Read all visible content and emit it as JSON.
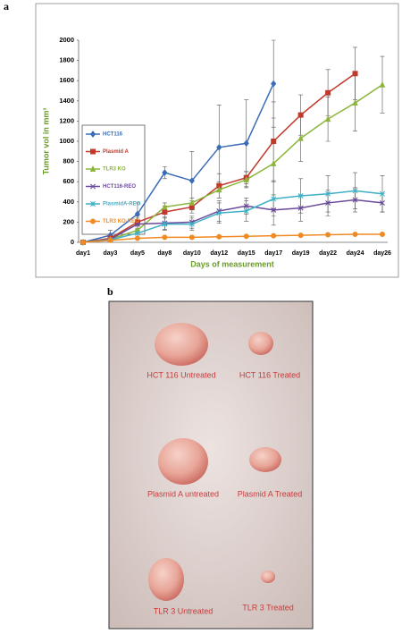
{
  "panel_a": {
    "label": "a"
  },
  "chart_data": {
    "type": "line",
    "y_label": "Tumor vol in mm³",
    "x_label": "Days of measurement",
    "categories": [
      "day1",
      "day3",
      "day5",
      "day8",
      "day10",
      "day12",
      "day15",
      "day17",
      "day19",
      "day22",
      "day24",
      "day26"
    ],
    "ylim": [
      0,
      2000
    ],
    "yticks": [
      0,
      200,
      400,
      600,
      800,
      1000,
      1200,
      1400,
      1600,
      1800,
      2000
    ],
    "grid": false,
    "series": [
      {
        "name": "HCT116",
        "color": "#3a6db5",
        "marker": "diamond",
        "values": [
          0,
          70,
          280,
          690,
          610,
          940,
          980,
          1570,
          null,
          null,
          null,
          null
        ],
        "errors": [
          0,
          50,
          110,
          60,
          290,
          420,
          430,
          430,
          null,
          null,
          null,
          null
        ]
      },
      {
        "name": "Plasmid A",
        "color": "#c0392b",
        "marker": "square",
        "values": [
          0,
          40,
          200,
          300,
          350,
          560,
          640,
          1000,
          1260,
          1480,
          1670,
          null
        ],
        "errors": [
          0,
          20,
          60,
          60,
          60,
          120,
          60,
          390,
          200,
          230,
          260,
          null
        ]
      },
      {
        "name": "TLR3 KO",
        "color": "#8db53c",
        "marker": "triangle",
        "values": [
          0,
          30,
          120,
          350,
          390,
          520,
          620,
          780,
          1030,
          1220,
          1380,
          1560
        ],
        "errors": [
          0,
          20,
          40,
          40,
          50,
          80,
          80,
          450,
          230,
          220,
          280,
          280
        ]
      },
      {
        "name": "HCT116-REO",
        "color": "#6b4a9c",
        "marker": "cross",
        "values": [
          0,
          30,
          180,
          190,
          200,
          310,
          360,
          320,
          340,
          390,
          420,
          390
        ],
        "errors": [
          0,
          15,
          60,
          60,
          60,
          100,
          80,
          150,
          130,
          130,
          120,
          90
        ]
      },
      {
        "name": "PlasmidA-REO",
        "color": "#3fb0c6",
        "marker": "star",
        "values": [
          0,
          25,
          90,
          180,
          180,
          290,
          310,
          430,
          460,
          480,
          510,
          480
        ],
        "errors": [
          0,
          15,
          40,
          60,
          60,
          100,
          100,
          170,
          170,
          180,
          180,
          180
        ]
      },
      {
        "name": "TLR3 KO-REO",
        "color": "#f08a24",
        "marker": "circle",
        "values": [
          0,
          20,
          40,
          50,
          50,
          55,
          60,
          65,
          70,
          75,
          80,
          80
        ],
        "errors": [
          0,
          5,
          10,
          10,
          10,
          10,
          10,
          10,
          10,
          10,
          10,
          10
        ]
      }
    ]
  },
  "panel_b": {
    "label": "b",
    "labels": [
      "HCT 116 Untreated",
      "HCT 116 Treated",
      "Plasmid A untreated",
      "Plasmid A Treated",
      "TLR 3 Untreated",
      "TLR 3 Treated"
    ]
  }
}
